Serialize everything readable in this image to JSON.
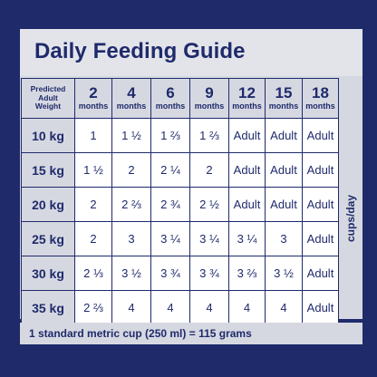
{
  "title": "Daily Feeding Guide",
  "corner_label": [
    "Predicted",
    "Adult",
    "Weight"
  ],
  "age_columns": [
    {
      "number": "2",
      "unit": "months"
    },
    {
      "number": "4",
      "unit": "months"
    },
    {
      "number": "6",
      "unit": "months"
    },
    {
      "number": "9",
      "unit": "months"
    },
    {
      "number": "12",
      "unit": "months"
    },
    {
      "number": "15",
      "unit": "months"
    },
    {
      "number": "18",
      "unit": "months"
    }
  ],
  "rows": [
    {
      "weight": "10 kg",
      "values": [
        "1",
        "1 ½",
        "1 ⅔",
        "1 ⅔",
        "Adult",
        "Adult",
        "Adult"
      ]
    },
    {
      "weight": "15 kg",
      "values": [
        "1 ½",
        "2",
        "2 ¼",
        "2",
        "Adult",
        "Adult",
        "Adult"
      ]
    },
    {
      "weight": "20 kg",
      "values": [
        "2",
        "2 ⅔",
        "2 ¾",
        "2 ½",
        "Adult",
        "Adult",
        "Adult"
      ]
    },
    {
      "weight": "25 kg",
      "values": [
        "2",
        "3",
        "3 ¼",
        "3 ¼",
        "3 ¼",
        "3",
        "Adult"
      ]
    },
    {
      "weight": "30 kg",
      "values": [
        "2 ⅓",
        "3 ½",
        "3 ¾",
        "3 ¾",
        "3 ⅔",
        "3 ½",
        "Adult"
      ]
    },
    {
      "weight": "35 kg",
      "values": [
        "2 ⅔",
        "4",
        "4",
        "4",
        "4",
        "4",
        "Adult"
      ]
    }
  ],
  "unit_label": "cups/day",
  "footnote": "1 standard metric cup (250 ml) = 115 grams",
  "colors": {
    "navy": "#1f2a6b",
    "light_grey": "#d6d8e1",
    "white": "#ffffff"
  }
}
